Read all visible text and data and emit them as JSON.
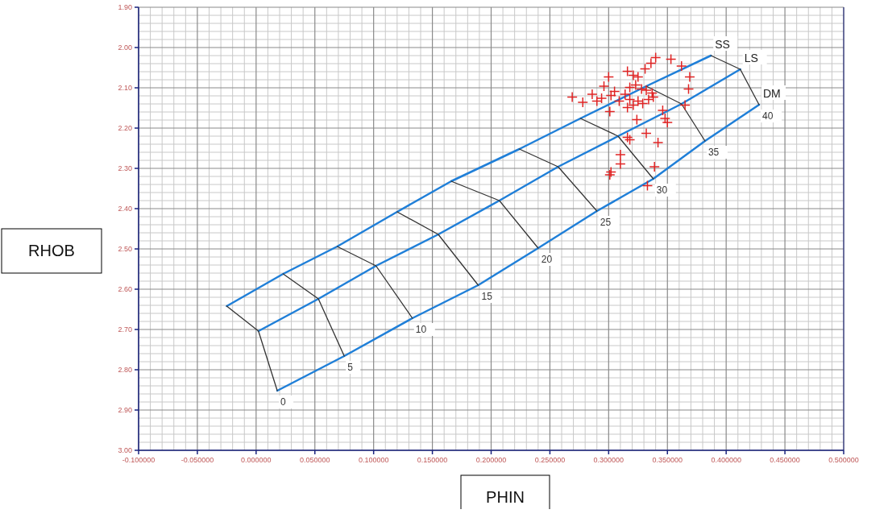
{
  "chart_data": {
    "type": "scatter",
    "xlabel": "PHIN",
    "ylabel": "RHOB",
    "xlim": [
      -0.1,
      0.5
    ],
    "ylim": [
      3.0,
      1.9
    ],
    "xticks": [
      {
        "value": -0.1,
        "label": "-0.100000"
      },
      {
        "value": -0.05,
        "label": "-0.050000"
      },
      {
        "value": 0,
        "label": "0.000000"
      },
      {
        "value": 0.05,
        "label": "0.050000"
      },
      {
        "value": 0.1,
        "label": "0.100000"
      },
      {
        "value": 0.15,
        "label": "0.150000"
      },
      {
        "value": 0.2,
        "label": "0.200000"
      },
      {
        "value": 0.25,
        "label": "0.250000"
      },
      {
        "value": 0.3,
        "label": "0.300000"
      },
      {
        "value": 0.35,
        "label": "0.350000"
      },
      {
        "value": 0.4,
        "label": "0.400000"
      },
      {
        "value": 0.45,
        "label": "0.450000"
      },
      {
        "value": 0.5,
        "label": "0.500000"
      }
    ],
    "yticks": [
      {
        "value": 1.9,
        "label": "1.90"
      },
      {
        "value": 2.0,
        "label": "2.00"
      },
      {
        "value": 2.1,
        "label": "2.10"
      },
      {
        "value": 2.2,
        "label": "2.20"
      },
      {
        "value": 2.3,
        "label": "2.30"
      },
      {
        "value": 2.4,
        "label": "2.40"
      },
      {
        "value": 2.5,
        "label": "2.50"
      },
      {
        "value": 2.6,
        "label": "2.60"
      },
      {
        "value": 2.7,
        "label": "2.70"
      },
      {
        "value": 2.8,
        "label": "2.80"
      },
      {
        "value": 2.9,
        "label": "2.90"
      },
      {
        "value": 3.0,
        "label": "3.00"
      }
    ],
    "grid": true,
    "series": [
      {
        "name": "SS",
        "type": "line",
        "color": "#1f7fd8",
        "x": [
          -0.025,
          0.023,
          0.069,
          0.12,
          0.166,
          0.224,
          0.276,
          0.332,
          0.387
        ],
        "values": [
          2.642,
          2.562,
          2.494,
          2.408,
          2.332,
          2.252,
          2.176,
          2.096,
          2.02
        ]
      },
      {
        "name": "LS",
        "type": "line",
        "color": "#1f7fd8",
        "x": [
          0.002,
          0.053,
          0.102,
          0.155,
          0.207,
          0.257,
          0.308,
          0.362,
          0.412
        ],
        "values": [
          2.704,
          2.624,
          2.542,
          2.464,
          2.38,
          2.296,
          2.22,
          2.14,
          2.054
        ]
      },
      {
        "name": "DM",
        "type": "line",
        "color": "#1f7fd8",
        "x": [
          0.018,
          0.075,
          0.133,
          0.189,
          0.24,
          0.29,
          0.338,
          0.382,
          0.428
        ],
        "values": [
          2.852,
          2.766,
          2.672,
          2.59,
          2.498,
          2.406,
          2.326,
          2.232,
          2.142
        ]
      },
      {
        "type": "line",
        "color": "#333333",
        "x": [
          -0.025,
          0.002,
          0.018
        ],
        "values": [
          2.642,
          2.704,
          2.852
        ]
      },
      {
        "type": "line",
        "color": "#333333",
        "x": [
          0.023,
          0.053,
          0.075
        ],
        "values": [
          2.562,
          2.624,
          2.766
        ]
      },
      {
        "type": "line",
        "color": "#333333",
        "x": [
          0.069,
          0.102,
          0.133
        ],
        "values": [
          2.494,
          2.542,
          2.672
        ]
      },
      {
        "type": "line",
        "color": "#333333",
        "x": [
          0.12,
          0.155,
          0.189
        ],
        "values": [
          2.408,
          2.464,
          2.59
        ]
      },
      {
        "type": "line",
        "color": "#333333",
        "x": [
          0.166,
          0.207,
          0.24
        ],
        "values": [
          2.332,
          2.38,
          2.498
        ]
      },
      {
        "type": "line",
        "color": "#333333",
        "x": [
          0.224,
          0.257,
          0.29
        ],
        "values": [
          2.252,
          2.296,
          2.406
        ]
      },
      {
        "type": "line",
        "color": "#333333",
        "x": [
          0.276,
          0.308,
          0.338
        ],
        "values": [
          2.176,
          2.22,
          2.326
        ]
      },
      {
        "type": "line",
        "color": "#333333",
        "x": [
          0.332,
          0.362,
          0.382
        ],
        "values": [
          2.096,
          2.14,
          2.232
        ]
      },
      {
        "type": "line",
        "color": "#333333",
        "x": [
          0.387,
          0.412,
          0.428
        ],
        "values": [
          2.02,
          2.054,
          2.142
        ]
      },
      {
        "marker": "cross",
        "color": "#e02424",
        "x": [
          0.34,
          0.353,
          0.362,
          0.336,
          0.331,
          0.369,
          0.368,
          0.316,
          0.321,
          0.3,
          0.325,
          0.296,
          0.269,
          0.278,
          0.286,
          0.29,
          0.294,
          0.302,
          0.305,
          0.309,
          0.314,
          0.318,
          0.323,
          0.328,
          0.332,
          0.337,
          0.318,
          0.321,
          0.325,
          0.329,
          0.334,
          0.338,
          0.346,
          0.348,
          0.35,
          0.365,
          0.301,
          0.316,
          0.324,
          0.316,
          0.318,
          0.332,
          0.342,
          0.31,
          0.31,
          0.302,
          0.301,
          0.339,
          0.333
        ],
        "values": [
          2.025,
          2.029,
          2.046,
          2.039,
          2.053,
          2.073,
          2.103,
          2.059,
          2.069,
          2.073,
          2.073,
          2.096,
          2.123,
          2.136,
          2.116,
          2.133,
          2.126,
          2.119,
          2.109,
          2.133,
          2.116,
          2.099,
          2.093,
          2.103,
          2.106,
          2.113,
          2.129,
          2.143,
          2.133,
          2.139,
          2.129,
          2.123,
          2.156,
          2.176,
          2.186,
          2.143,
          2.159,
          2.149,
          2.179,
          2.223,
          2.229,
          2.213,
          2.236,
          2.266,
          2.289,
          2.309,
          2.316,
          2.296,
          2.343
        ]
      }
    ],
    "annotations": [
      {
        "text": "0",
        "x": 0.018,
        "y": 2.852
      },
      {
        "text": "5",
        "x": 0.075,
        "y": 2.766
      },
      {
        "text": "10",
        "x": 0.133,
        "y": 2.672
      },
      {
        "text": "15",
        "x": 0.189,
        "y": 2.59
      },
      {
        "text": "20",
        "x": 0.24,
        "y": 2.498
      },
      {
        "text": "25",
        "x": 0.29,
        "y": 2.406
      },
      {
        "text": "30",
        "x": 0.338,
        "y": 2.326
      },
      {
        "text": "35",
        "x": 0.382,
        "y": 2.232
      },
      {
        "text": "40",
        "x": 0.428,
        "y": 2.142
      }
    ]
  }
}
